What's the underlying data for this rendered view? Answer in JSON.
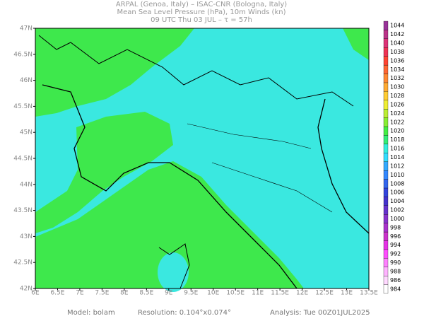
{
  "header": {
    "line1": "ARPAL (Genoa, Italy)  –  ISAC-CNR (Bologna, Italy)",
    "line2": "Mean Sea Level Pressure (hPa), 10m Winds (kn)",
    "line3": "09 UTC Thu 03 JUL  –  τ = 57h"
  },
  "map": {
    "xticks": [
      "6E",
      "6.5E",
      "7E",
      "7.5E",
      "8E",
      "8.5E",
      "9E",
      "9.5E",
      "10E",
      "10.5E",
      "11E",
      "11.5E",
      "12E",
      "12.5E",
      "13E",
      "13.5E"
    ],
    "yticks": [
      "47N",
      "46.5N",
      "46N",
      "45.5N",
      "45N",
      "44.5N",
      "44N",
      "43.5N",
      "43N",
      "42.5N",
      "42N"
    ]
  },
  "colorbar": {
    "levels": [
      {
        "value": 984,
        "color": "#ffffff"
      },
      {
        "value": 986,
        "color": "#ffd9ff"
      },
      {
        "value": 988,
        "color": "#ffb3ff"
      },
      {
        "value": 990,
        "color": "#ff80ff"
      },
      {
        "value": 992,
        "color": "#ff4dff"
      },
      {
        "value": 994,
        "color": "#e633e6"
      },
      {
        "value": 996,
        "color": "#cc33cc"
      },
      {
        "value": 998,
        "color": "#aa33cc"
      },
      {
        "value": 1000,
        "color": "#8833cc"
      },
      {
        "value": 1002,
        "color": "#6633cc"
      },
      {
        "value": 1004,
        "color": "#4433cc"
      },
      {
        "value": 1006,
        "color": "#3344dd"
      },
      {
        "value": 1008,
        "color": "#3366ee"
      },
      {
        "value": 1010,
        "color": "#3388ff"
      },
      {
        "value": 1012,
        "color": "#33aaff"
      },
      {
        "value": 1014,
        "color": "#33ddff"
      },
      {
        "value": 1016,
        "color": "#33eedd"
      },
      {
        "value": 1018,
        "color": "#33ee77"
      },
      {
        "value": 1020,
        "color": "#44ee44"
      },
      {
        "value": 1022,
        "color": "#88ee33"
      },
      {
        "value": 1024,
        "color": "#bbee33"
      },
      {
        "value": 1026,
        "color": "#eeee33"
      },
      {
        "value": 1028,
        "color": "#ffcc33"
      },
      {
        "value": 1030,
        "color": "#ffaa33"
      },
      {
        "value": 1032,
        "color": "#ff8833"
      },
      {
        "value": 1034,
        "color": "#ff6633"
      },
      {
        "value": 1036,
        "color": "#ff4433"
      },
      {
        "value": 1038,
        "color": "#ee3355"
      },
      {
        "value": 1040,
        "color": "#dd3377"
      },
      {
        "value": 1042,
        "color": "#bb3388"
      },
      {
        "value": 1044,
        "color": "#993399"
      }
    ]
  },
  "footer": {
    "model": "Model: bolam",
    "resolution": "Resolution: 0.104°x0.074°",
    "analysis": "Analysis: Tue 00Z01JUL2025"
  }
}
